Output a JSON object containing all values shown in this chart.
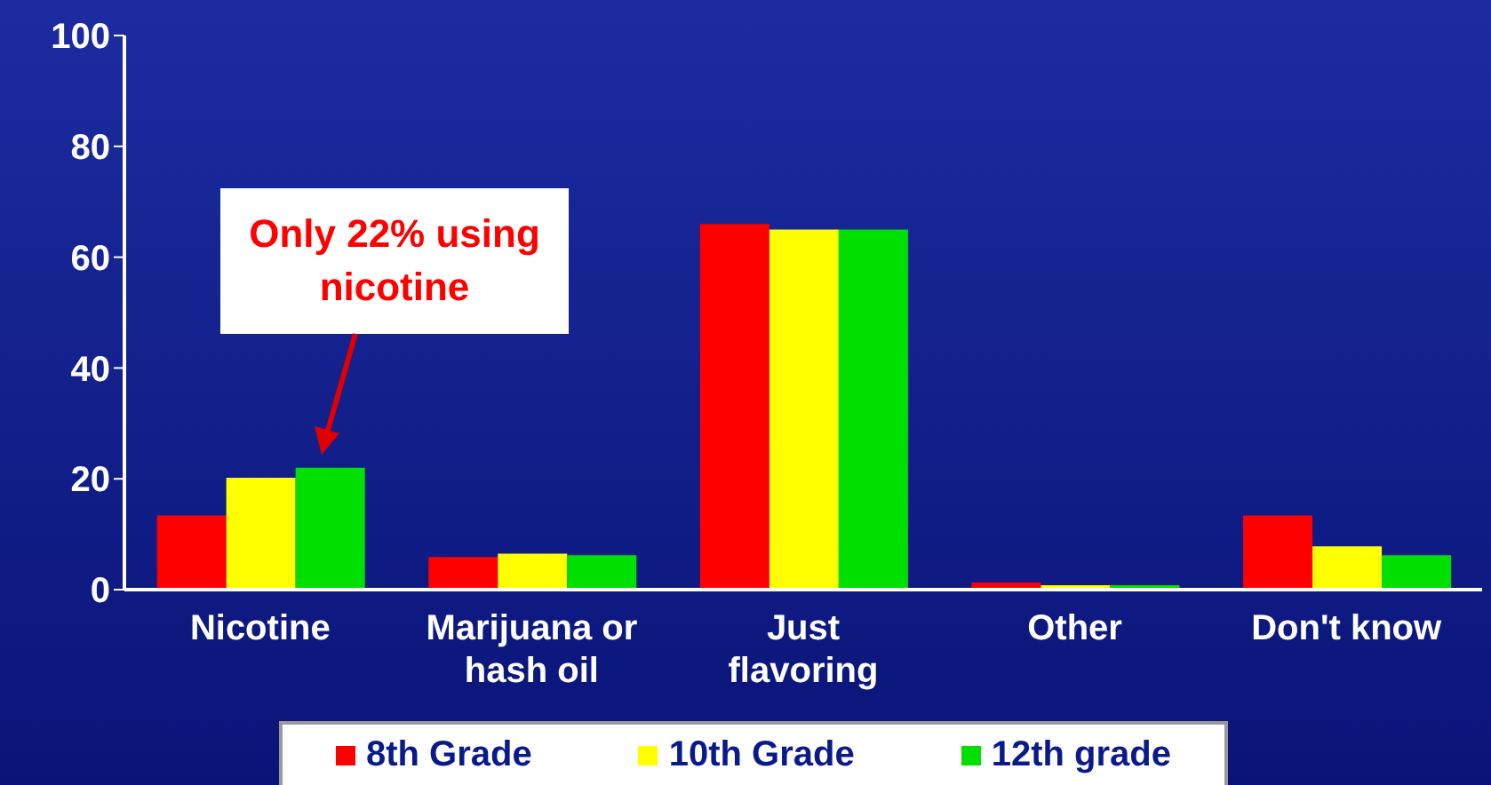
{
  "chart_data": {
    "type": "bar",
    "categories": [
      "Nicotine",
      "Marijuana or hash oil",
      "Just flavoring",
      "Other",
      "Don't know"
    ],
    "series": [
      {
        "name": "8th Grade",
        "color": "#ff0000",
        "values": [
          13.4,
          5.9,
          66,
          1.3,
          13.4
        ]
      },
      {
        "name": "10th Grade",
        "color": "#ffff00",
        "values": [
          20.2,
          6.5,
          65,
          0.8,
          7.8
        ]
      },
      {
        "name": "12th grade",
        "color": "#00e000",
        "values": [
          22,
          6.2,
          65,
          0.8,
          6.2
        ]
      }
    ],
    "ylim": [
      0,
      100
    ],
    "yticks": [
      0,
      20,
      40,
      60,
      80,
      100
    ],
    "legend": "bottom",
    "annotations": [
      "Only 22% using nicotine"
    ]
  }
}
